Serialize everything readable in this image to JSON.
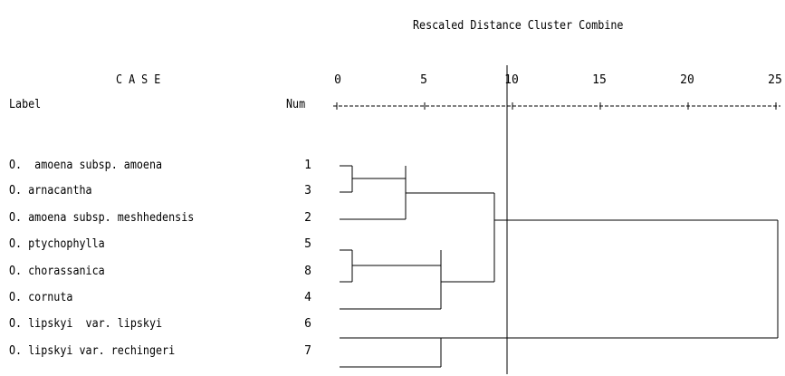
{
  "header": {
    "title": "Rescaled Distance Cluster Combine",
    "case_heading": "C A S E",
    "label_heading": "Label",
    "num_heading": "Num"
  },
  "axis": {
    "ticks": [
      "0",
      "5",
      "10",
      "15",
      "20",
      "25"
    ],
    "ruler": "+---------+---------+---------+---------+---------+",
    "cutoff": 10
  },
  "cases": [
    {
      "label": "O.  amoena subsp. amoena",
      "num": "1"
    },
    {
      "label": "O. arnacantha",
      "num": "3"
    },
    {
      "label": "O. amoena subsp. meshhedensis",
      "num": "2"
    },
    {
      "label": "O. ptychophylla",
      "num": "5"
    },
    {
      "label": "O. chorassanica",
      "num": "8"
    },
    {
      "label": "O. cornuta",
      "num": "4"
    },
    {
      "label": "O. lipskyi  var. lipskyi",
      "num": "6"
    },
    {
      "label": "O. lipskyi var. rechingeri",
      "num": "7"
    }
  ],
  "merges": [
    {
      "a": "1",
      "b": "3",
      "distance": 1
    },
    {
      "a": "5",
      "b": "8",
      "distance": 1
    },
    {
      "a": "1,3",
      "b": "2",
      "distance": 4
    },
    {
      "a": "6",
      "b": "7",
      "distance": 6
    },
    {
      "a": "5,8",
      "b": "4",
      "distance": 6
    },
    {
      "a": "1,3,2",
      "b": "5,8,4",
      "distance": 9.3
    },
    {
      "a": "1,3,2,5,8,4",
      "b": "6,7",
      "distance": 25
    }
  ]
}
